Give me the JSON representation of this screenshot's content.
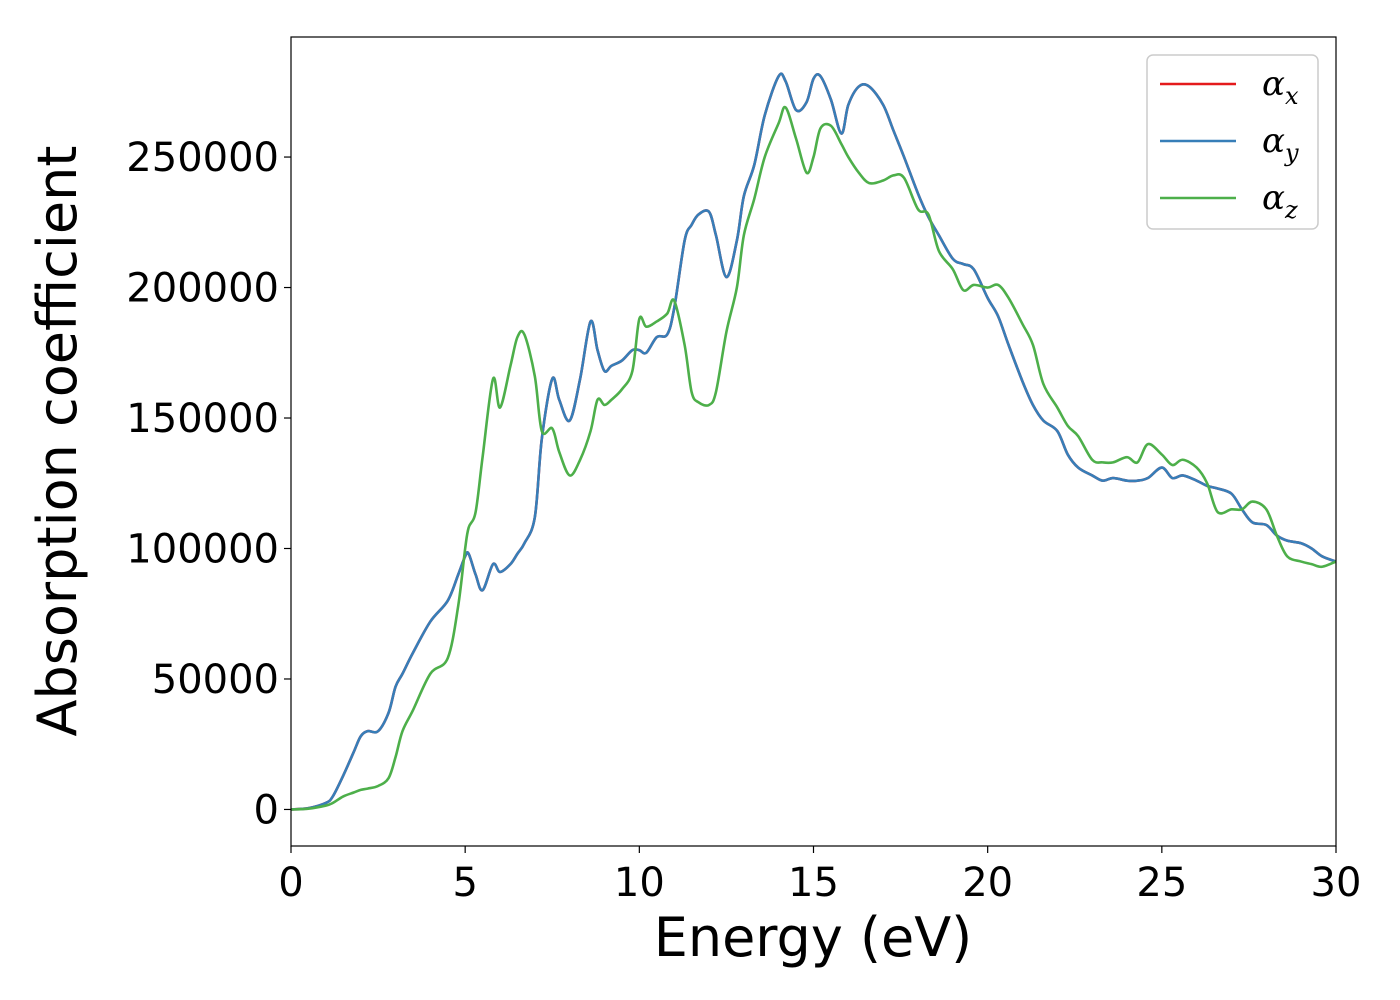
{
  "chart_data": {
    "type": "line",
    "xlabel": "Energy (eV)",
    "ylabel": "Absorption coefficient",
    "xlim": [
      0,
      30
    ],
    "ylim": [
      -14000,
      296000
    ],
    "xticks": [
      0,
      5,
      10,
      15,
      20,
      25,
      30
    ],
    "yticks": [
      0,
      50000,
      100000,
      150000,
      200000,
      250000
    ],
    "xtick_labels": [
      "0",
      "5",
      "10",
      "15",
      "20",
      "25",
      "30"
    ],
    "ytick_labels": [
      "0",
      "50000",
      "100000",
      "150000",
      "200000",
      "250000"
    ],
    "grid": false,
    "legend_position": "top-right",
    "x": [
      0,
      0.5,
      1.0,
      1.2,
      1.5,
      1.8,
      2.0,
      2.2,
      2.5,
      2.8,
      3.0,
      3.2,
      3.5,
      4.0,
      4.5,
      4.8,
      5.0,
      5.1,
      5.3,
      5.5,
      5.8,
      6.0,
      6.3,
      6.5,
      6.7,
      7.0,
      7.2,
      7.5,
      7.7,
      8.0,
      8.3,
      8.6,
      8.8,
      9.0,
      9.2,
      9.5,
      9.8,
      10.0,
      10.2,
      10.5,
      10.8,
      11.0,
      11.3,
      11.5,
      11.7,
      12.0,
      12.2,
      12.5,
      12.8,
      13.0,
      13.3,
      13.6,
      14.0,
      14.2,
      14.5,
      14.8,
      15.0,
      15.2,
      15.5,
      15.8,
      16.0,
      16.3,
      16.6,
      17.0,
      17.3,
      17.6,
      18.0,
      18.3,
      18.6,
      19.0,
      19.3,
      19.6,
      20.0,
      20.3,
      20.6,
      21.0,
      21.3,
      21.6,
      22.0,
      22.3,
      22.6,
      23.0,
      23.3,
      23.6,
      24.0,
      24.3,
      24.6,
      25.0,
      25.3,
      25.6,
      26.0,
      26.3,
      26.6,
      27.0,
      27.3,
      27.6,
      28.0,
      28.3,
      28.6,
      29.0,
      29.3,
      29.6,
      30.0
    ],
    "series": [
      {
        "name": "α_x",
        "symbol": "α",
        "subscript": "x",
        "color": "#e41a1c",
        "values": [
          0,
          500,
          2500,
          5000,
          13000,
          22000,
          28000,
          30000,
          30000,
          37000,
          47000,
          52000,
          60000,
          72000,
          80000,
          90000,
          97000,
          98000,
          90000,
          84000,
          94000,
          91000,
          94000,
          98000,
          102000,
          112000,
          142000,
          165000,
          157000,
          149000,
          165000,
          187000,
          176000,
          168000,
          170000,
          172000,
          176000,
          176000,
          175000,
          181000,
          182000,
          192000,
          218000,
          224000,
          228000,
          229000,
          220000,
          204000,
          218000,
          235000,
          247000,
          266000,
          281000,
          279000,
          268000,
          271000,
          280000,
          281000,
          272000,
          259000,
          270000,
          277000,
          277000,
          270000,
          260000,
          250000,
          236000,
          227000,
          220000,
          211000,
          209000,
          207000,
          196000,
          189000,
          178000,
          164000,
          155000,
          149000,
          145000,
          136000,
          131000,
          128000,
          126000,
          127000,
          126000,
          126000,
          127000,
          131000,
          127000,
          128000,
          126000,
          124000,
          123000,
          121000,
          115000,
          110000,
          109000,
          105000,
          103000,
          102000,
          100000,
          97000,
          95000
        ]
      },
      {
        "name": "α_y",
        "symbol": "α",
        "subscript": "y",
        "color": "#377eb8",
        "values": [
          0,
          500,
          2500,
          5000,
          13000,
          22000,
          28000,
          30000,
          30000,
          37000,
          47000,
          52000,
          60000,
          72000,
          80000,
          90000,
          97000,
          98000,
          90000,
          84000,
          94000,
          91000,
          94000,
          98000,
          102000,
          112000,
          142000,
          165000,
          157000,
          149000,
          165000,
          187000,
          176000,
          168000,
          170000,
          172000,
          176000,
          176000,
          175000,
          181000,
          182000,
          192000,
          218000,
          224000,
          228000,
          229000,
          220000,
          204000,
          218000,
          235000,
          247000,
          266000,
          281000,
          279000,
          268000,
          271000,
          280000,
          281000,
          272000,
          259000,
          270000,
          277000,
          277000,
          270000,
          260000,
          250000,
          236000,
          227000,
          220000,
          211000,
          209000,
          207000,
          196000,
          189000,
          178000,
          164000,
          155000,
          149000,
          145000,
          136000,
          131000,
          128000,
          126000,
          127000,
          126000,
          126000,
          127000,
          131000,
          127000,
          128000,
          126000,
          124000,
          123000,
          121000,
          115000,
          110000,
          109000,
          105000,
          103000,
          102000,
          100000,
          97000,
          95000
        ]
      },
      {
        "name": "α_z",
        "symbol": "α",
        "subscript": "z",
        "color": "#4daf4a",
        "values": [
          0,
          300,
          1500,
          2500,
          5000,
          6500,
          7500,
          8000,
          9000,
          12000,
          20000,
          30000,
          38000,
          52000,
          58000,
          78000,
          100000,
          108000,
          114000,
          135000,
          165000,
          154000,
          170000,
          181000,
          182000,
          166000,
          145000,
          146000,
          137000,
          128000,
          134000,
          145000,
          157000,
          155000,
          157000,
          161000,
          168000,
          188000,
          185000,
          187000,
          190000,
          195000,
          178000,
          160000,
          156000,
          155000,
          160000,
          183000,
          200000,
          220000,
          234000,
          250000,
          263000,
          269000,
          257000,
          244000,
          250000,
          261000,
          262000,
          255000,
          250000,
          244000,
          240000,
          241000,
          243000,
          242000,
          230000,
          228000,
          214000,
          207000,
          199000,
          201000,
          200000,
          201000,
          196000,
          186000,
          178000,
          163000,
          154000,
          147000,
          143000,
          134000,
          133000,
          133000,
          135000,
          133000,
          140000,
          136000,
          132000,
          134000,
          131000,
          125000,
          114000,
          115000,
          115000,
          118000,
          115000,
          105000,
          97000,
          95000,
          94000,
          93000,
          95000
        ]
      }
    ]
  }
}
